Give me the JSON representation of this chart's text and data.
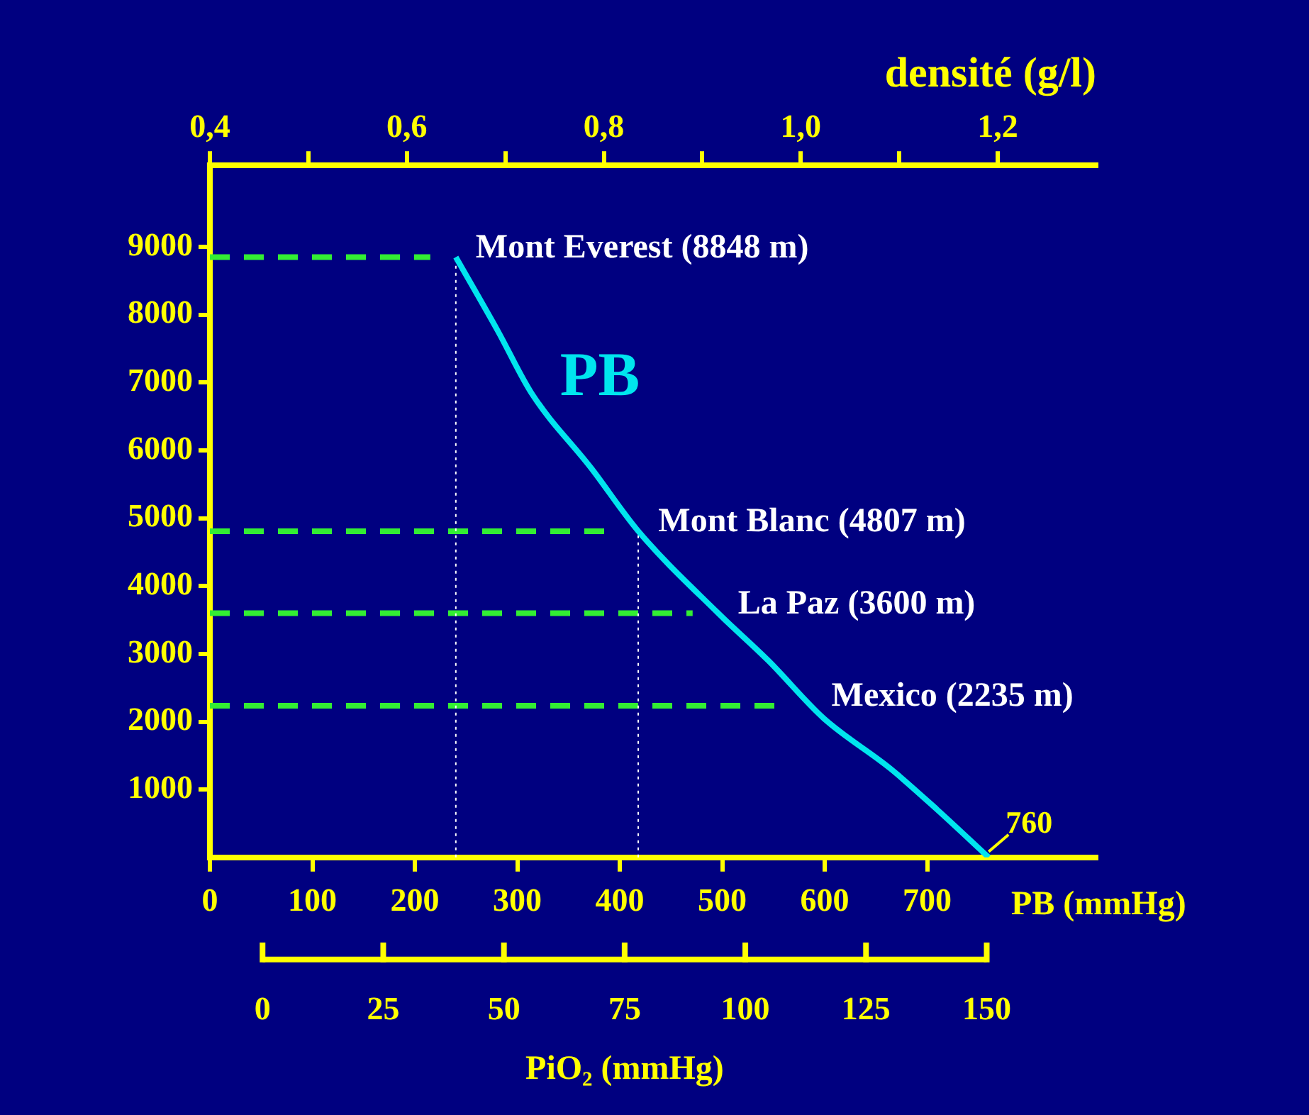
{
  "chart_data": {
    "type": "line",
    "xlabel": "PB (mmHg)",
    "x2label": "densité (g/l)",
    "xlim": [
      0,
      865
    ],
    "xticks": [
      0,
      100,
      200,
      300,
      400,
      500,
      600,
      700
    ],
    "ylim": [
      0,
      10200
    ],
    "yticks": [
      1000,
      2000,
      3000,
      4000,
      5000,
      6000,
      7000,
      8000,
      9000
    ],
    "x2lim": [
      0.4,
      1.3
    ],
    "x2ticks": [
      {
        "value": 0.4,
        "label": "0,4"
      },
      {
        "value": 0.5,
        "label": null
      },
      {
        "value": 0.6,
        "label": "0,6"
      },
      {
        "value": 0.7,
        "label": null
      },
      {
        "value": 0.8,
        "label": "0,8"
      },
      {
        "value": 0.9,
        "label": null
      },
      {
        "value": 1.0,
        "label": "1,0"
      },
      {
        "value": 1.1,
        "label": null
      },
      {
        "value": 1.2,
        "label": "1,2"
      }
    ],
    "series": [
      {
        "name": "PB",
        "type": "line",
        "color": "#00e5ee",
        "x": [
          240,
          281,
          314,
          372,
          418,
          496,
          545,
          599,
          664,
          710,
          760
        ],
        "values": [
          8848,
          7760,
          6840,
          5740,
          4810,
          3600,
          2900,
          2050,
          1310,
          700,
          0
        ]
      }
    ],
    "marker": "none",
    "line_style": "solid",
    "grid": false,
    "legend": false,
    "ref_lines": [
      {
        "axis": "y",
        "value": 8848,
        "label": "Mont Everest (8848 m)",
        "color": "#33ee33",
        "line_style": "dashed"
      },
      {
        "axis": "y",
        "value": 4807,
        "label": "Mont Blanc (4807 m)",
        "color": "#33ee33",
        "line_style": "dashed"
      },
      {
        "axis": "y",
        "value": 3600,
        "label": "La Paz (3600 m)",
        "color": "#33ee33",
        "line_style": "dashed"
      },
      {
        "axis": "y",
        "value": 2235,
        "label": "Mexico (2235 m)",
        "color": "#33ee33",
        "line_style": "dashed"
      },
      {
        "axis": "x",
        "value": 240,
        "color": "#ffffff",
        "line_style": "dotted"
      },
      {
        "axis": "x",
        "value": 418,
        "color": "#ffffff",
        "line_style": "dotted"
      }
    ],
    "annotations": [
      {
        "text": "760",
        "x": 760,
        "y": 0
      },
      "0",
      "25",
      "50",
      "75",
      "100",
      "125",
      "150",
      "PiO₂ (mmHg)"
    ]
  }
}
